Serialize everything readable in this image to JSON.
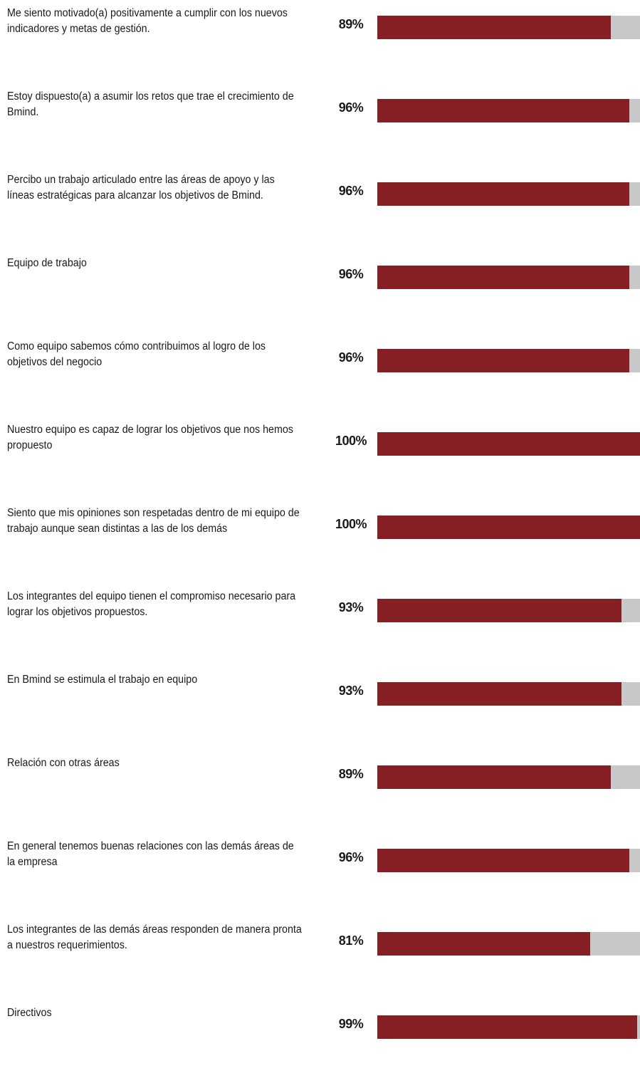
{
  "colors": {
    "bar": "#861f23",
    "track": "#c8c8ca",
    "text": "#1a1a1a",
    "background": "#ffffff"
  },
  "chart_data": {
    "type": "bar",
    "orientation": "horizontal",
    "xlim": [
      0,
      100
    ],
    "unit": "%",
    "categories": [
      "Me siento motivado(a) positivamente a cumplir con los nuevos indicadores y metas de gestión.",
      "Estoy dispuesto(a) a asumir los retos que trae el crecimiento de Bmind.",
      "Percibo un trabajo articulado entre las áreas de apoyo y las líneas estratégicas para alcanzar los objetivos de Bmind.",
      "Equipo de trabajo",
      "Como equipo sabemos cómo contribuimos al logro de los objetivos del negocio",
      "Nuestro equipo es capaz de lograr los objetivos que nos hemos propuesto",
      "Siento que mis opiniones son respetadas dentro de mi equipo de trabajo aunque sean distintas a las de los demás",
      "Los integrantes del equipo tienen el compromiso necesario para lograr los objetivos propuestos.",
      "En Bmind se estimula el trabajo en equipo",
      "Relación con otras áreas",
      "En general tenemos buenas relaciones con las demás áreas de la empresa",
      "Los integrantes de las demás áreas responden de manera pronta a nuestros requerimientos.",
      "Directivos"
    ],
    "values": [
      89,
      96,
      96,
      96,
      96,
      100,
      100,
      93,
      93,
      89,
      96,
      81,
      99
    ],
    "value_labels": [
      "89%",
      "96%",
      "96%",
      "96%",
      "96%",
      "100%",
      "100%",
      "93%",
      "93%",
      "89%",
      "96%",
      "81%",
      "99%"
    ]
  }
}
